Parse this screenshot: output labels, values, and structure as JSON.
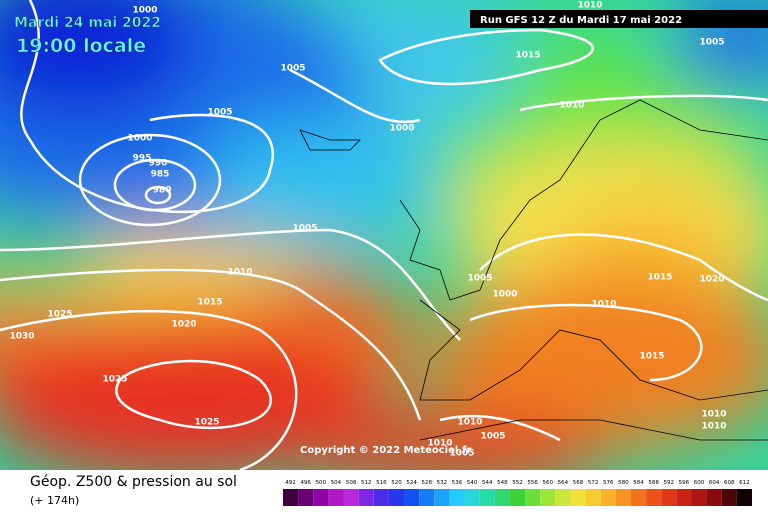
{
  "header": {
    "date": "Mardi 24 mai 2022",
    "time": "19:00 locale",
    "run": "Run GFS 12 Z du Mardi 17 mai 2022"
  },
  "map": {
    "isobar_labels": [
      1000,
      1005,
      1005,
      1000,
      995,
      990,
      985,
      980,
      1000,
      1015,
      1010,
      1010,
      1005,
      1005,
      1010,
      1015,
      1025,
      1020,
      1030,
      1025,
      1025,
      1005,
      1000,
      1015,
      1020,
      1010,
      1015,
      1010,
      1005,
      1010,
      1010,
      1010,
      1005
    ],
    "copyright": "Copyright © 2022 Meteociel.fr"
  },
  "footer": {
    "title": "Géop. Z500 & pression au sol",
    "lead": "(+ 174h)",
    "scale": [
      492,
      496,
      500,
      504,
      508,
      512,
      516,
      520,
      524,
      528,
      532,
      536,
      540,
      544,
      548,
      552,
      556,
      560,
      564,
      568,
      572,
      576,
      580,
      584,
      588,
      592,
      596,
      600,
      604,
      608,
      612
    ]
  }
}
